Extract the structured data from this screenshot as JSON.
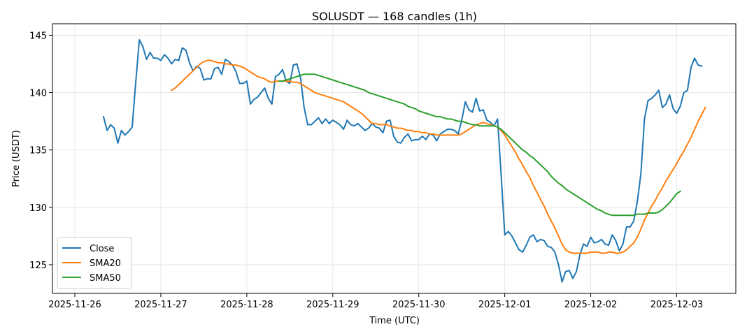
{
  "chart_data": {
    "type": "line",
    "title": "SOLUSDT — 168 candles (1h)",
    "xlabel": "Time (UTC)",
    "ylabel": "Price (USDT)",
    "ylim": [
      122.5,
      146
    ],
    "xlim": [
      "2025-11-25T17:45",
      "2025-12-03T16:30"
    ],
    "x_ticks": [
      "2025-11-26",
      "2025-11-27",
      "2025-11-28",
      "2025-11-29",
      "2025-11-30",
      "2025-12-01",
      "2025-12-02",
      "2025-12-03"
    ],
    "y_ticks": [
      125,
      130,
      135,
      140,
      145
    ],
    "grid": true,
    "legend_position": "lower-left",
    "x_start": "2025-11-26T08:00",
    "x_step_hours": 1,
    "series": [
      {
        "name": "Close",
        "color": "#1f77b4",
        "values": [
          137.9,
          136.7,
          137.2,
          136.9,
          135.6,
          136.7,
          136.3,
          136.6,
          137.0,
          140.9,
          144.6,
          144.0,
          142.9,
          143.5,
          143.0,
          143.0,
          142.8,
          143.3,
          143.0,
          142.5,
          142.9,
          142.8,
          143.9,
          143.7,
          142.6,
          141.9,
          142.3,
          142.1,
          141.1,
          141.2,
          141.2,
          142.1,
          142.2,
          141.6,
          142.9,
          142.7,
          142.4,
          141.8,
          140.8,
          140.8,
          141.0,
          139.0,
          139.4,
          139.6,
          140.0,
          140.4,
          139.5,
          139.0,
          141.4,
          141.6,
          142.0,
          141.0,
          140.8,
          142.4,
          142.5,
          141.3,
          138.7,
          137.2,
          137.2,
          137.5,
          137.8,
          137.3,
          137.7,
          137.3,
          137.6,
          137.4,
          137.2,
          136.8,
          137.6,
          137.2,
          137.1,
          137.3,
          137.0,
          136.7,
          136.9,
          137.3,
          137.0,
          136.9,
          136.5,
          137.5,
          137.6,
          136.2,
          135.7,
          135.6,
          136.1,
          136.4,
          135.8,
          135.9,
          135.9,
          136.2,
          135.9,
          136.4,
          136.3,
          135.8,
          136.4,
          136.6,
          136.8,
          136.8,
          136.7,
          136.4,
          137.6,
          139.2,
          138.5,
          138.3,
          139.5,
          138.4,
          138.5,
          137.6,
          137.4,
          137.1,
          137.7,
          132.8,
          127.6,
          127.9,
          127.5,
          126.9,
          126.3,
          126.1,
          126.7,
          127.4,
          127.6,
          127.0,
          127.2,
          127.1,
          126.6,
          126.5,
          126.1,
          125.0,
          123.5,
          124.4,
          124.5,
          123.8,
          124.4,
          125.9,
          126.8,
          126.6,
          127.4,
          126.9,
          127.0,
          127.2,
          126.8,
          126.7,
          127.6,
          127.1,
          126.2,
          126.8,
          128.3,
          128.3,
          128.8,
          130.5,
          132.9,
          137.7,
          139.3,
          139.5,
          139.8,
          140.2,
          138.7,
          139.0,
          139.8,
          138.6,
          138.2,
          138.8,
          140.0,
          140.2,
          142.2,
          143.0,
          142.4,
          142.3
        ]
      },
      {
        "name": "SMA20",
        "color": "#ff7f0e",
        "values": [
          null,
          null,
          null,
          null,
          null,
          null,
          null,
          null,
          null,
          null,
          null,
          null,
          null,
          null,
          null,
          null,
          null,
          null,
          null,
          140.2,
          140.4,
          140.7,
          141.0,
          141.3,
          141.6,
          141.9,
          142.2,
          142.5,
          142.7,
          142.8,
          142.8,
          142.7,
          142.6,
          142.6,
          142.5,
          142.5,
          142.4,
          142.4,
          142.3,
          142.2,
          142.0,
          141.8,
          141.6,
          141.4,
          141.3,
          141.2,
          141.0,
          140.9,
          141.0,
          141.0,
          141.0,
          141.0,
          141.0,
          140.9,
          140.9,
          140.8,
          140.6,
          140.4,
          140.2,
          140.0,
          139.9,
          139.8,
          139.7,
          139.6,
          139.5,
          139.4,
          139.3,
          139.2,
          139.0,
          138.8,
          138.6,
          138.4,
          138.2,
          137.9,
          137.6,
          137.3,
          137.3,
          137.2,
          137.2,
          137.2,
          137.1,
          137.0,
          136.9,
          136.9,
          136.8,
          136.7,
          136.7,
          136.6,
          136.6,
          136.5,
          136.5,
          136.4,
          136.4,
          136.3,
          136.3,
          136.3,
          136.3,
          136.3,
          136.3,
          136.3,
          136.4,
          136.6,
          136.8,
          137.0,
          137.2,
          137.3,
          137.4,
          137.3,
          137.2,
          137.1,
          137.0,
          136.7,
          136.3,
          135.8,
          135.3,
          134.8,
          134.2,
          133.7,
          133.1,
          132.6,
          131.9,
          131.3,
          130.7,
          130.1,
          129.4,
          128.8,
          128.2,
          127.5,
          126.8,
          126.3,
          126.1,
          126.0,
          126.0,
          126.0,
          126.0,
          126.0,
          126.1,
          126.1,
          126.1,
          126.0,
          126.0,
          126.1,
          126.1,
          126.0,
          126.0,
          126.1,
          126.3,
          126.6,
          126.9,
          127.4,
          128.1,
          128.9,
          129.5,
          130.1,
          130.6,
          131.2,
          131.7,
          132.3,
          132.8,
          133.3,
          133.8,
          134.4,
          134.9,
          135.5,
          136.1,
          136.8,
          137.5,
          138.1,
          138.7
        ]
      },
      {
        "name": "SMA50",
        "color": "#2ca02c",
        "values": [
          null,
          null,
          null,
          null,
          null,
          null,
          null,
          null,
          null,
          null,
          null,
          null,
          null,
          null,
          null,
          null,
          null,
          null,
          null,
          null,
          null,
          null,
          null,
          null,
          null,
          null,
          null,
          null,
          null,
          null,
          null,
          null,
          null,
          null,
          null,
          null,
          null,
          null,
          null,
          null,
          null,
          null,
          null,
          null,
          null,
          null,
          null,
          null,
          null,
          141.0,
          141.0,
          141.1,
          141.2,
          141.3,
          141.4,
          141.5,
          141.6,
          141.6,
          141.6,
          141.6,
          141.5,
          141.4,
          141.3,
          141.2,
          141.1,
          141.0,
          140.9,
          140.8,
          140.7,
          140.6,
          140.5,
          140.4,
          140.3,
          140.2,
          140.0,
          139.9,
          139.8,
          139.7,
          139.6,
          139.5,
          139.4,
          139.3,
          139.2,
          139.1,
          139.0,
          138.8,
          138.7,
          138.6,
          138.4,
          138.3,
          138.2,
          138.1,
          138.0,
          137.9,
          137.9,
          137.8,
          137.7,
          137.7,
          137.6,
          137.5,
          137.5,
          137.4,
          137.3,
          137.2,
          137.2,
          137.1,
          137.1,
          137.1,
          137.1,
          137.1,
          137.0,
          136.8,
          136.5,
          136.2,
          135.9,
          135.6,
          135.3,
          135.0,
          134.8,
          134.5,
          134.3,
          134.0,
          133.7,
          133.4,
          133.1,
          132.7,
          132.4,
          132.1,
          131.9,
          131.6,
          131.4,
          131.2,
          131.0,
          130.8,
          130.6,
          130.4,
          130.2,
          130.0,
          129.8,
          129.7,
          129.5,
          129.4,
          129.3,
          129.3,
          129.3,
          129.3,
          129.3,
          129.3,
          129.3,
          129.4,
          129.4,
          129.4,
          129.5,
          129.5,
          129.5,
          129.6,
          129.8,
          130.1,
          130.4,
          130.8,
          131.2,
          131.4
        ]
      }
    ]
  }
}
